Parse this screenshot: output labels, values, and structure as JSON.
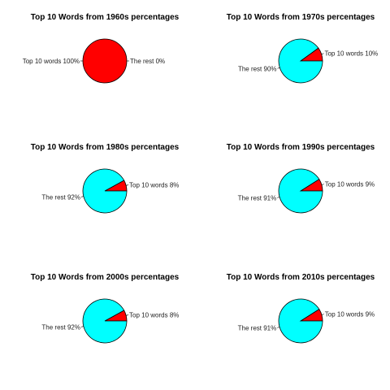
{
  "colors": {
    "top10": "#ff0000",
    "rest": "#00ffff",
    "outline": "#000000"
  },
  "chart_data": [
    {
      "type": "pie",
      "title": "Top 10 Words from 1960s percentages",
      "slices": [
        {
          "label": "Top 10 words 100%",
          "value": 100,
          "color": "#ff0000"
        },
        {
          "label": "The rest 0%",
          "value": 0,
          "color": "#00ffff"
        }
      ]
    },
    {
      "type": "pie",
      "title": "Top 10 Words from 1970s percentages",
      "slices": [
        {
          "label": "Top 10 words 10%",
          "value": 10,
          "color": "#ff0000"
        },
        {
          "label": "The rest 90%",
          "value": 90,
          "color": "#00ffff"
        }
      ]
    },
    {
      "type": "pie",
      "title": "Top 10 Words from 1980s percentages",
      "slices": [
        {
          "label": "Top 10 words 8%",
          "value": 8,
          "color": "#ff0000"
        },
        {
          "label": "The rest 92%",
          "value": 92,
          "color": "#00ffff"
        }
      ]
    },
    {
      "type": "pie",
      "title": "Top 10 Words from 1990s percentages",
      "slices": [
        {
          "label": "Top 10 words 9%",
          "value": 9,
          "color": "#ff0000"
        },
        {
          "label": "The rest 91%",
          "value": 91,
          "color": "#00ffff"
        }
      ]
    },
    {
      "type": "pie",
      "title": "Top 10 Words from 2000s percentages",
      "slices": [
        {
          "label": "Top 10 words 8%",
          "value": 8,
          "color": "#ff0000"
        },
        {
          "label": "The rest 92%",
          "value": 92,
          "color": "#00ffff"
        }
      ]
    },
    {
      "type": "pie",
      "title": "Top 10 Words from 2010s percentages",
      "slices": [
        {
          "label": "Top 10 words 9%",
          "value": 9,
          "color": "#ff0000"
        },
        {
          "label": "The rest 91%",
          "value": 91,
          "color": "#00ffff"
        }
      ]
    }
  ]
}
